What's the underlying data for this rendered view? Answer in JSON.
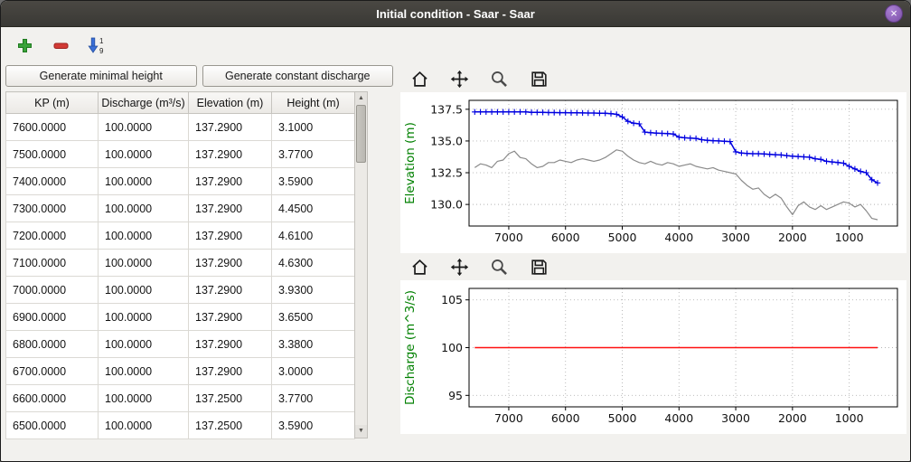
{
  "window": {
    "title": "Initial condition - Saar - Saar",
    "close_label": "×"
  },
  "main_toolbar": {
    "add_icon": "plus-icon",
    "remove_icon": "minus-icon",
    "sort_icon": "sort-numeric-down-icon",
    "sort_top": "1",
    "sort_bottom": "9"
  },
  "left_panel": {
    "generate_minimal_height_label": "Generate minimal height",
    "generate_constant_discharge_label": "Generate constant discharge",
    "table": {
      "columns": [
        "KP (m)",
        "Discharge (m³/s)",
        "Elevation (m)",
        "Height (m)"
      ],
      "rows": [
        [
          "7600.0000",
          "100.0000",
          "137.2900",
          "3.1000"
        ],
        [
          "7500.0000",
          "100.0000",
          "137.2900",
          "3.7700"
        ],
        [
          "7400.0000",
          "100.0000",
          "137.2900",
          "3.5900"
        ],
        [
          "7300.0000",
          "100.0000",
          "137.2900",
          "4.4500"
        ],
        [
          "7200.0000",
          "100.0000",
          "137.2900",
          "4.6100"
        ],
        [
          "7100.0000",
          "100.0000",
          "137.2900",
          "4.6300"
        ],
        [
          "7000.0000",
          "100.0000",
          "137.2900",
          "3.9300"
        ],
        [
          "6900.0000",
          "100.0000",
          "137.2900",
          "3.6500"
        ],
        [
          "6800.0000",
          "100.0000",
          "137.2900",
          "3.3800"
        ],
        [
          "6700.0000",
          "100.0000",
          "137.2900",
          "3.0000"
        ],
        [
          "6600.0000",
          "100.0000",
          "137.2500",
          "3.7700"
        ],
        [
          "6500.0000",
          "100.0000",
          "137.2500",
          "3.5900"
        ]
      ]
    }
  },
  "plot_toolbar": {
    "buttons": [
      "home",
      "pan",
      "zoom",
      "save"
    ]
  },
  "colors": {
    "accent_green": "#008000",
    "water_line": "#0000e0",
    "bottom_line": "#8a8a8a",
    "discharge_line": "#ff1111",
    "titlebar": "#3f3d39",
    "close_button": "#8a5cb4"
  },
  "chart_data": [
    {
      "type": "line",
      "title": "",
      "xlabel": "",
      "ylabel": "Elevation (m)",
      "ylabel_color": "#008000",
      "xlim": [
        7700,
        150
      ],
      "ylim": [
        128.3,
        138.2
      ],
      "x_axis_inverted": true,
      "grid": true,
      "legend": "none",
      "xticks": [
        7000,
        6000,
        5000,
        4000,
        3000,
        2000,
        1000
      ],
      "xtick_labels": [
        "7000",
        "6000",
        "5000",
        "4000",
        "3000",
        "2000",
        "1000"
      ],
      "yticks": [
        130.0,
        132.5,
        135.0,
        137.5
      ],
      "ytick_labels": [
        "130.0",
        "132.5",
        "135.0",
        "137.5"
      ],
      "x": [
        7600,
        7500,
        7400,
        7300,
        7200,
        7100,
        7000,
        6900,
        6800,
        6700,
        6600,
        6500,
        6400,
        6300,
        6200,
        6100,
        6000,
        5900,
        5800,
        5700,
        5600,
        5500,
        5400,
        5300,
        5200,
        5100,
        5000,
        4900,
        4800,
        4700,
        4600,
        4500,
        4400,
        4300,
        4200,
        4100,
        4000,
        3900,
        3800,
        3700,
        3600,
        3500,
        3400,
        3300,
        3200,
        3100,
        3000,
        2900,
        2800,
        2700,
        2600,
        2500,
        2400,
        2300,
        2200,
        2100,
        2000,
        1900,
        1800,
        1700,
        1600,
        1500,
        1400,
        1300,
        1200,
        1100,
        1000,
        900,
        800,
        700,
        600,
        500
      ],
      "series": [
        {
          "name": "water-elevation",
          "color": "#0000e0",
          "marker": "+",
          "width": 1.5,
          "y": [
            137.29,
            137.29,
            137.29,
            137.29,
            137.29,
            137.29,
            137.29,
            137.29,
            137.29,
            137.29,
            137.25,
            137.25,
            137.25,
            137.24,
            137.24,
            137.23,
            137.23,
            137.22,
            137.22,
            137.21,
            137.2,
            137.2,
            137.19,
            137.18,
            137.15,
            137.1,
            136.9,
            136.55,
            136.4,
            136.35,
            135.7,
            135.65,
            135.62,
            135.6,
            135.58,
            135.55,
            135.3,
            135.25,
            135.22,
            135.2,
            135.1,
            135.05,
            135.02,
            135.0,
            134.98,
            134.95,
            134.15,
            134.05,
            134.02,
            134.0,
            134.0,
            133.98,
            133.95,
            133.92,
            133.9,
            133.85,
            133.8,
            133.78,
            133.75,
            133.72,
            133.6,
            133.55,
            133.4,
            133.35,
            133.3,
            133.25,
            133.0,
            132.8,
            132.6,
            132.5,
            131.95,
            131.7
          ]
        },
        {
          "name": "bottom-elevation",
          "color": "#8a8a8a",
          "marker": "none",
          "width": 1.2,
          "y": [
            132.9,
            133.2,
            133.1,
            132.9,
            133.4,
            133.5,
            134.0,
            134.2,
            133.7,
            133.6,
            133.2,
            132.9,
            133.0,
            133.3,
            133.3,
            133.5,
            133.4,
            133.3,
            133.5,
            133.6,
            133.5,
            133.4,
            133.5,
            133.7,
            134.0,
            134.3,
            134.2,
            133.8,
            133.5,
            133.3,
            133.2,
            133.4,
            133.2,
            133.1,
            133.3,
            133.2,
            133.0,
            133.1,
            133.2,
            133.0,
            132.9,
            132.8,
            132.9,
            132.7,
            132.6,
            132.5,
            132.4,
            131.9,
            131.5,
            131.2,
            131.3,
            130.8,
            130.5,
            130.8,
            130.5,
            129.8,
            129.2,
            129.9,
            130.2,
            129.8,
            129.6,
            129.9,
            129.6,
            129.8,
            130.0,
            130.2,
            130.1,
            129.8,
            130.0,
            129.5,
            128.9,
            128.8
          ]
        }
      ]
    },
    {
      "type": "line",
      "title": "",
      "xlabel": "",
      "ylabel": "Discharge (m^3/s)",
      "ylabel_color": "#008000",
      "xlim": [
        7700,
        150
      ],
      "ylim": [
        93.8,
        106.2
      ],
      "x_axis_inverted": true,
      "grid": true,
      "legend": "none",
      "xticks": [
        7000,
        6000,
        5000,
        4000,
        3000,
        2000,
        1000
      ],
      "xtick_labels": [
        "7000",
        "6000",
        "5000",
        "4000",
        "3000",
        "2000",
        "1000"
      ],
      "yticks": [
        95,
        100,
        105
      ],
      "ytick_labels": [
        "95",
        "100",
        "105"
      ],
      "x": [
        7600,
        500
      ],
      "series": [
        {
          "name": "discharge",
          "color": "#ff1111",
          "marker": "none",
          "width": 1.4,
          "y": [
            100,
            100
          ]
        }
      ]
    }
  ]
}
